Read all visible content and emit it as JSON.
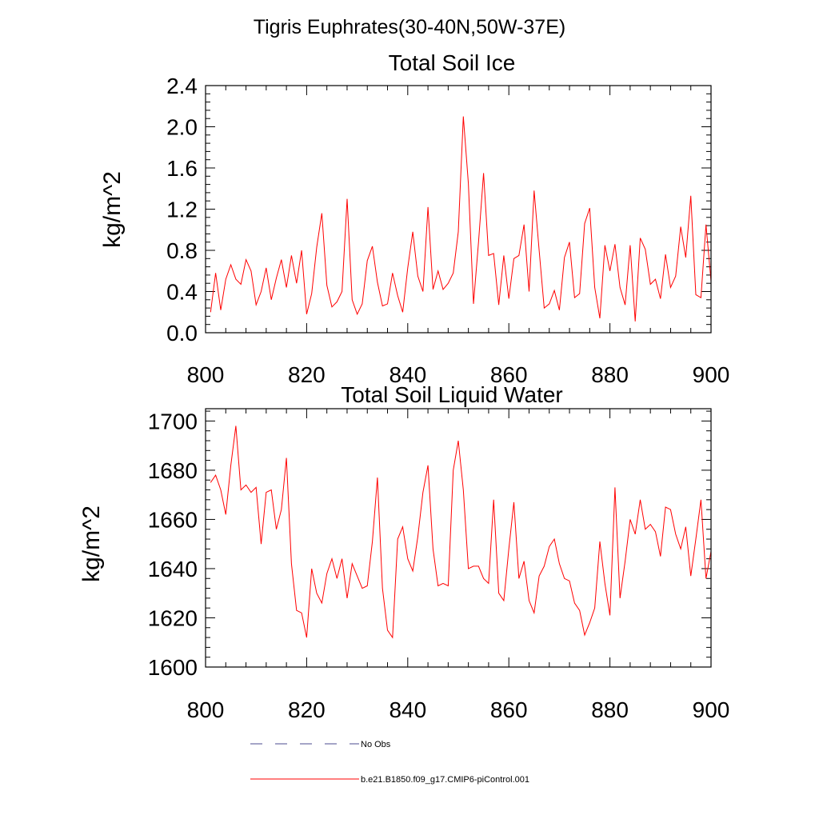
{
  "figure_title": "Tigris Euphrates(30-40N,50W-37E)",
  "chart_data": [
    {
      "type": "line",
      "title": "Total Soil Ice",
      "xlabel": "",
      "ylabel": "kg/m^2",
      "xlim": [
        800,
        900
      ],
      "ylim": [
        0.0,
        2.4
      ],
      "xticks": [
        800,
        820,
        840,
        860,
        880,
        900
      ],
      "xtick_labels": [
        "800",
        "820",
        "840",
        "860",
        "880",
        "900"
      ],
      "yticks": [
        0.0,
        0.4,
        0.8,
        1.2,
        1.6,
        2.0,
        2.4
      ],
      "ytick_labels": [
        "0.0",
        "0.4",
        "0.8",
        "1.2",
        "1.6",
        "2.0",
        "2.4"
      ],
      "series": [
        {
          "name": "b.e21.B1850.f09_g17.CMIP6-piControl.001",
          "color": "#ff0000",
          "x_start": 801,
          "x_step": 1,
          "values": [
            0.2,
            0.58,
            0.22,
            0.52,
            0.66,
            0.52,
            0.47,
            0.71,
            0.6,
            0.27,
            0.4,
            0.63,
            0.32,
            0.53,
            0.71,
            0.44,
            0.75,
            0.48,
            0.8,
            0.18,
            0.38,
            0.83,
            1.16,
            0.46,
            0.25,
            0.3,
            0.4,
            1.3,
            0.32,
            0.18,
            0.28,
            0.7,
            0.84,
            0.49,
            0.26,
            0.28,
            0.58,
            0.36,
            0.2,
            0.63,
            0.98,
            0.55,
            0.4,
            1.22,
            0.42,
            0.6,
            0.42,
            0.48,
            0.58,
            0.98,
            2.1,
            1.45,
            0.28,
            0.88,
            1.55,
            0.75,
            0.77,
            0.27,
            0.75,
            0.33,
            0.72,
            0.75,
            1.05,
            0.4,
            1.38,
            0.8,
            0.24,
            0.28,
            0.41,
            0.22,
            0.73,
            0.88,
            0.34,
            0.38,
            1.06,
            1.21,
            0.44,
            0.14,
            0.85,
            0.6,
            0.86,
            0.44,
            0.27,
            0.85,
            0.11,
            0.92,
            0.81,
            0.47,
            0.52,
            0.33,
            0.76,
            0.44,
            0.55,
            1.03,
            0.73,
            1.33,
            0.37,
            0.34,
            1.05,
            0.5
          ]
        }
      ]
    },
    {
      "type": "line",
      "title": "Total Soil Liquid Water",
      "xlabel": "",
      "ylabel": "kg/m^2",
      "xlim": [
        800,
        900
      ],
      "ylim": [
        1600,
        1705
      ],
      "xticks": [
        800,
        820,
        840,
        860,
        880,
        900
      ],
      "xtick_labels": [
        "800",
        "820",
        "840",
        "860",
        "880",
        "900"
      ],
      "yticks": [
        1600,
        1620,
        1640,
        1660,
        1680,
        1700
      ],
      "ytick_labels": [
        "1600",
        "1620",
        "1640",
        "1660",
        "1680",
        "1700"
      ],
      "series": [
        {
          "name": "b.e21.B1850.f09_g17.CMIP6-piControl.001",
          "color": "#ff0000",
          "x_start": 801,
          "x_step": 1,
          "values": [
            1675,
            1678,
            1672,
            1662,
            1682,
            1698,
            1672,
            1674,
            1671,
            1673,
            1650,
            1671,
            1672,
            1656,
            1664,
            1685,
            1642,
            1623,
            1622,
            1612,
            1640,
            1630,
            1626,
            1638,
            1644,
            1636,
            1644,
            1628,
            1642,
            1637,
            1632,
            1633,
            1651,
            1677,
            1632,
            1615,
            1612,
            1652,
            1657,
            1644,
            1639,
            1653,
            1671,
            1682,
            1648,
            1633,
            1634,
            1633,
            1680,
            1692,
            1672,
            1640,
            1641,
            1641,
            1636,
            1634,
            1668,
            1630,
            1627,
            1648,
            1667,
            1636,
            1643,
            1627,
            1622,
            1637,
            1641,
            1649,
            1652,
            1642,
            1636,
            1635,
            1626,
            1623,
            1613,
            1618,
            1624,
            1651,
            1634,
            1621,
            1673,
            1628,
            1643,
            1660,
            1654,
            1668,
            1656,
            1658,
            1655,
            1645,
            1665,
            1664,
            1654,
            1648,
            1657,
            1637,
            1652,
            1668,
            1636,
            1647
          ]
        }
      ]
    }
  ],
  "legend": {
    "items": [
      {
        "label": "No Obs",
        "style": "dashed",
        "color": "#4b4b8f"
      },
      {
        "label": "b.e21.B1850.f09_g17.CMIP6-piControl.001",
        "style": "solid",
        "color": "#ff0000"
      }
    ]
  }
}
